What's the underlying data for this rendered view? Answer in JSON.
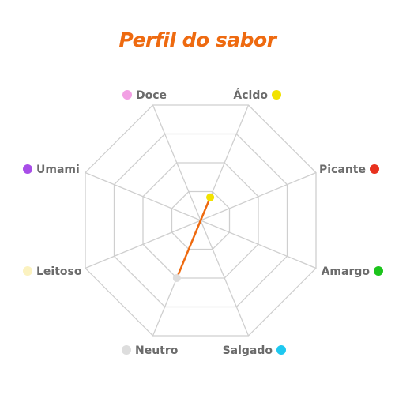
{
  "chart_data": {
    "type": "radar",
    "title": "Perfil do sabor",
    "axes": [
      {
        "name": "Doce",
        "color": "#f2a0e4"
      },
      {
        "name": "Ácido",
        "color": "#f2e200"
      },
      {
        "name": "Picante",
        "color": "#e8311e"
      },
      {
        "name": "Amargo",
        "color": "#1cc41c"
      },
      {
        "name": "Salgado",
        "color": "#1ec8f0"
      },
      {
        "name": "Neutro",
        "color": "#dddddd"
      },
      {
        "name": "Leitoso",
        "color": "#fbf2c0"
      },
      {
        "name": "Umami",
        "color": "#a84ee8"
      }
    ],
    "rings": 4,
    "range": [
      0,
      1
    ],
    "grid": true,
    "values": {
      "Doce": 0,
      "Ácido": 0.2,
      "Picante": 0,
      "Amargo": 0,
      "Salgado": 0,
      "Neutro": 0.5,
      "Leitoso": 0,
      "Umami": 0
    },
    "line_color": "#ee6a10",
    "grid_color": "#cfcfcf"
  }
}
